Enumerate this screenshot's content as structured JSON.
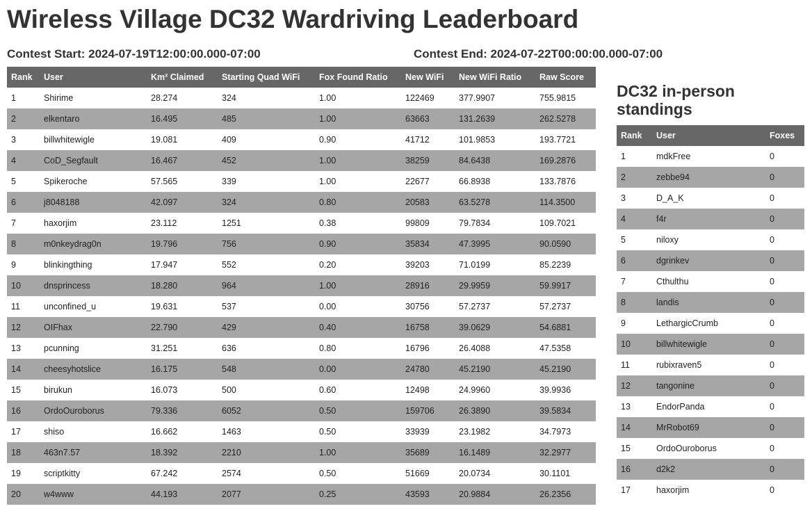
{
  "title": "Wireless Village DC32 Wardriving Leaderboard",
  "contest_start": "Contest Start: 2024-07-19T12:00:00.000-07:00",
  "contest_end": "Contest End: 2024-07-22T00:00:00.000-07:00",
  "leaderboard": {
    "headers": [
      "Rank",
      "User",
      "Km² Claimed",
      "Starting Quad WiFi",
      "Fox Found Ratio",
      "New WiFi",
      "New WiFi Ratio",
      "Raw Score"
    ],
    "rows": [
      [
        "1",
        "Shirime",
        "28.274",
        "324",
        "1.00",
        "122469",
        "377.9907",
        "755.9815"
      ],
      [
        "2",
        "elkentaro",
        "16.495",
        "485",
        "1.00",
        "63663",
        "131.2639",
        "262.5278"
      ],
      [
        "3",
        "billwhitewigle",
        "19.081",
        "409",
        "0.90",
        "41712",
        "101.9853",
        "193.7721"
      ],
      [
        "4",
        "CoD_Segfault",
        "16.467",
        "452",
        "1.00",
        "38259",
        "84.6438",
        "169.2876"
      ],
      [
        "5",
        "Spikeroche",
        "57.565",
        "339",
        "1.00",
        "22677",
        "66.8938",
        "133.7876"
      ],
      [
        "6",
        "j8048188",
        "42.097",
        "324",
        "0.80",
        "20583",
        "63.5278",
        "114.3500"
      ],
      [
        "7",
        "haxorjim",
        "23.112",
        "1251",
        "0.38",
        "99809",
        "79.7834",
        "109.7021"
      ],
      [
        "8",
        "m0nkeydrag0n",
        "19.796",
        "756",
        "0.90",
        "35834",
        "47.3995",
        "90.0590"
      ],
      [
        "9",
        "blinkingthing",
        "17.947",
        "552",
        "0.20",
        "39203",
        "71.0199",
        "85.2239"
      ],
      [
        "10",
        "dnsprincess",
        "18.280",
        "964",
        "1.00",
        "28916",
        "29.9959",
        "59.9917"
      ],
      [
        "11",
        "unconfined_u",
        "19.631",
        "537",
        "0.00",
        "30756",
        "57.2737",
        "57.2737"
      ],
      [
        "12",
        "OIFhax",
        "22.790",
        "429",
        "0.40",
        "16758",
        "39.0629",
        "54.6881"
      ],
      [
        "13",
        "pcunning",
        "31.251",
        "636",
        "0.80",
        "16796",
        "26.4088",
        "47.5358"
      ],
      [
        "14",
        "cheesyhotslice",
        "16.175",
        "548",
        "0.00",
        "24780",
        "45.2190",
        "45.2190"
      ],
      [
        "15",
        "birukun",
        "16.073",
        "500",
        "0.60",
        "12498",
        "24.9960",
        "39.9936"
      ],
      [
        "16",
        "OrdoOuroborus",
        "79.336",
        "6052",
        "0.50",
        "159706",
        "26.3890",
        "39.5834"
      ],
      [
        "17",
        "shiso",
        "16.662",
        "1463",
        "0.50",
        "33939",
        "23.1982",
        "34.7973"
      ],
      [
        "18",
        "463n7.57",
        "18.392",
        "2210",
        "1.00",
        "35689",
        "16.1489",
        "32.2977"
      ],
      [
        "19",
        "scriptkitty",
        "67.242",
        "2574",
        "0.50",
        "51669",
        "20.0734",
        "30.1101"
      ],
      [
        "20",
        "w4www",
        "44.193",
        "2077",
        "0.25",
        "43593",
        "20.9884",
        "26.2356"
      ]
    ]
  },
  "in_person": {
    "title": "DC32 in-person standings",
    "headers": [
      "Rank",
      "User",
      "Foxes"
    ],
    "rows": [
      [
        "1",
        "mdkFree",
        "0"
      ],
      [
        "2",
        "zebbe94",
        "0"
      ],
      [
        "3",
        "D_A_K",
        "0"
      ],
      [
        "4",
        "f4r",
        "0"
      ],
      [
        "5",
        "niloxy",
        "0"
      ],
      [
        "6",
        "dgrinkev",
        "0"
      ],
      [
        "7",
        "Cthulthu",
        "0"
      ],
      [
        "8",
        "landis",
        "0"
      ],
      [
        "9",
        "LethargicCrumb",
        "0"
      ],
      [
        "10",
        "billwhitewigle",
        "0"
      ],
      [
        "11",
        "rubixraven5",
        "0"
      ],
      [
        "12",
        "tangonine",
        "0"
      ],
      [
        "13",
        "EndorPanda",
        "0"
      ],
      [
        "14",
        "MrRobot69",
        "0"
      ],
      [
        "15",
        "OrdoOuroborus",
        "0"
      ],
      [
        "16",
        "d2k2",
        "0"
      ],
      [
        "17",
        "haxorjim",
        "0"
      ]
    ]
  }
}
